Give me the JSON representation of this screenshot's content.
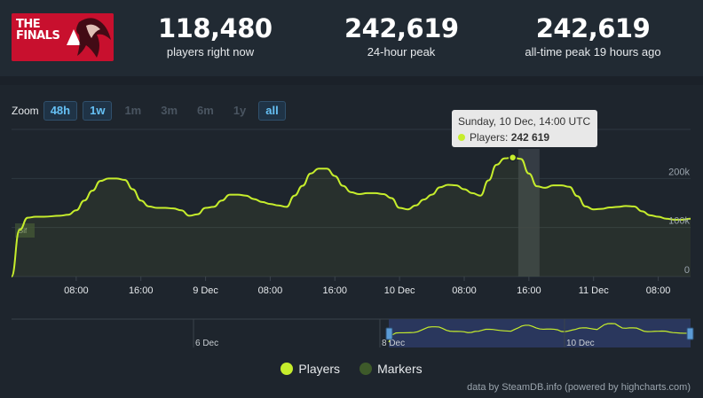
{
  "logo": {
    "text": "THE FINALS"
  },
  "stats": [
    {
      "value": "118,480",
      "label": "players right now"
    },
    {
      "value": "242,619",
      "label": "24-hour peak"
    },
    {
      "value": "242,619",
      "label": "all-time peak 19 hours ago"
    }
  ],
  "zoom": {
    "label": "Zoom",
    "buttons": [
      {
        "label": "48h",
        "active": true
      },
      {
        "label": "1w",
        "active": true
      },
      {
        "label": "1m",
        "active": false
      },
      {
        "label": "3m",
        "active": false
      },
      {
        "label": "6m",
        "active": false
      },
      {
        "label": "1y",
        "active": false
      },
      {
        "label": "all",
        "active": true
      }
    ]
  },
  "tooltip": {
    "date": "Sunday, 10 Dec, 14:00 UTC",
    "series": "Players",
    "value": "242 619"
  },
  "marker_flag": "Gif",
  "navigator": {
    "labels": [
      "6 Dec",
      "8 Dec",
      "10 Dec"
    ]
  },
  "legend": [
    {
      "name": "Players",
      "color": "#c6ed2c"
    },
    {
      "name": "Markers",
      "color": "#3e5a2a"
    }
  ],
  "credits": "data by SteamDB.info (powered by highcharts.com)",
  "chart_data": {
    "type": "line",
    "x_ticks": [
      "08:00",
      "16:00",
      "9 Dec",
      "08:00",
      "16:00",
      "10 Dec",
      "08:00",
      "16:00",
      "11 Dec",
      "08:00"
    ],
    "x_tick_hours": [
      8,
      16,
      24,
      32,
      40,
      48,
      56,
      64,
      72,
      80
    ],
    "y_ticks": [
      "0",
      "100k",
      "200k"
    ],
    "y_tick_values": [
      0,
      100000,
      200000
    ],
    "ylim": [
      0,
      300000
    ],
    "xlim_hours": [
      0,
      84
    ],
    "highlight_hour": 64,
    "series": [
      {
        "name": "Players",
        "color": "#c6ed2c",
        "x_hours": [
          0,
          1,
          2,
          3,
          4,
          6,
          7,
          8,
          9,
          10,
          11,
          12,
          13,
          14,
          15,
          16,
          17,
          18,
          19,
          20,
          21,
          22,
          23,
          24,
          25,
          26,
          27,
          28,
          29,
          30,
          31,
          32,
          33,
          34,
          35,
          36,
          37,
          38,
          39,
          40,
          41,
          42,
          43,
          44,
          45,
          46,
          47,
          48,
          49,
          50,
          51,
          52,
          53,
          54,
          55,
          56,
          57,
          58,
          59,
          60,
          61,
          62,
          63,
          64,
          65,
          66,
          67,
          68,
          69,
          70,
          71,
          72,
          73,
          74,
          75,
          76,
          77,
          78,
          79,
          80,
          81,
          82,
          83,
          84
        ],
        "values": [
          0,
          95000,
          120000,
          122000,
          122000,
          124000,
          126000,
          135000,
          155000,
          175000,
          195000,
          200000,
          200000,
          197000,
          178000,
          155000,
          143000,
          140000,
          140000,
          139000,
          135000,
          124000,
          127000,
          140000,
          142000,
          155000,
          167000,
          167000,
          165000,
          158000,
          152000,
          148000,
          145000,
          142000,
          165000,
          185000,
          210000,
          220000,
          220000,
          205000,
          185000,
          172000,
          168000,
          170000,
          170000,
          168000,
          160000,
          140000,
          137000,
          145000,
          157000,
          167000,
          182000,
          187000,
          186000,
          178000,
          170000,
          165000,
          196000,
          228000,
          241000,
          242619,
          240000,
          210000,
          184000,
          181000,
          186000,
          186000,
          183000,
          164000,
          143000,
          137000,
          138000,
          141000,
          142000,
          144000,
          143000,
          133000,
          125000,
          122000,
          118000,
          116000,
          116000,
          118000
        ]
      }
    ]
  }
}
